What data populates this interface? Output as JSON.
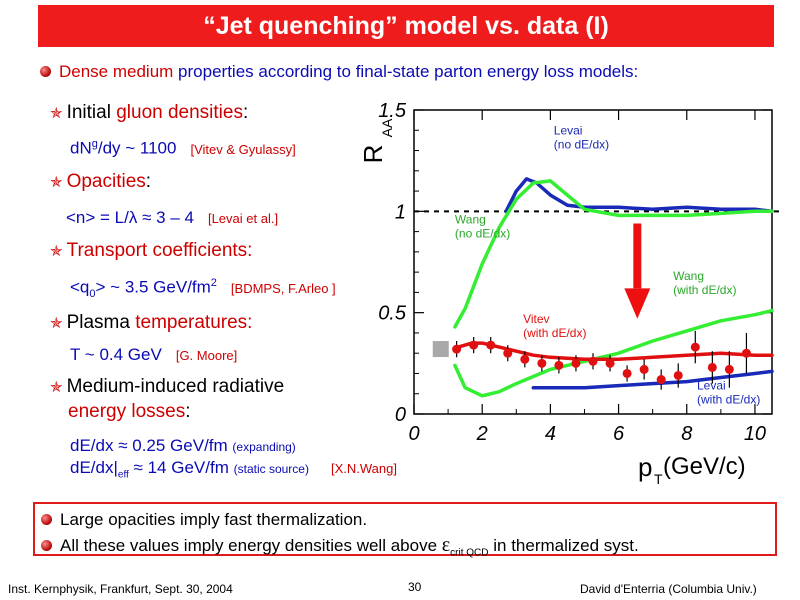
{
  "title": "“Jet quenching” model vs. data (I)",
  "intro": {
    "highlight": "Dense medium",
    "rest": " properties according to final-state parton energy loss models:"
  },
  "items": [
    {
      "pre": "Initial ",
      "hl": "gluon densities",
      "post": ":"
    },
    {
      "pre": "",
      "hl": "Opacities",
      "post": ":"
    },
    {
      "pre": "",
      "hl": "Transport coefficients:",
      "post": ""
    },
    {
      "pre": "Plasma ",
      "hl": "temperatures:",
      "post": ""
    },
    {
      "pre": "Medium-induced radiative",
      "hl": "",
      "post": ""
    }
  ],
  "item5_line2": {
    "hl": "energy losses",
    "post": ":"
  },
  "values": {
    "v1": {
      "a": "dN",
      "sup": "g",
      "b": "/dy ~ 1100",
      "ref": "[Vitev & Gyulassy]"
    },
    "v2": {
      "a": "<n> = L/λ  ≈ 3 – 4",
      "ref": "[Levai et al.]"
    },
    "v3": {
      "a": "<q",
      "sub": "0",
      "b": "> ~ 3.5 GeV/fm",
      "sup": "2",
      "ref": "[BDMPS, F.Arleo ]"
    },
    "v4": {
      "a": "T ~ 0.4 GeV",
      "ref": "[G. Moore]"
    },
    "v5a": {
      "a": "dE/dx ≈ 0.25 GeV/fm",
      "small": "(expanding)"
    },
    "v5b": {
      "a": "dE/dx|",
      "sub": "eff",
      "b": " ≈ 14 GeV/fm",
      "small": "(static source)",
      "ref": "[X.N.Wang]"
    }
  },
  "bottom": {
    "line1": "Large opacities imply fast thermalization.",
    "line2a": "All these values imply energy densities well above ",
    "eps": "ε",
    "sub": "crit QCD",
    "line2b": " in thermalized syst."
  },
  "footer": {
    "left": "Inst. Kernphysik, Frankfurt, Sept. 30, 2004",
    "page": "30",
    "right": "David d'Enterria (Columbia Univ.)"
  },
  "colors": {
    "accent": "#ee1c1c",
    "text_red": "#cc0000",
    "text_blue": "#0a0ab4",
    "curve_blue": "#1a2ab8",
    "curve_green": "#33ee33",
    "curve_red": "#e01010",
    "data_red": "#e01010",
    "arrow": "#ee1010"
  },
  "chart_data": {
    "type": "line",
    "xlabel": "p",
    "xlabel_sub": "T",
    "xlabel_unit": " (GeV/c)",
    "ylabel": "R",
    "ylabel_sub": "AA",
    "xlim": [
      0,
      10.5
    ],
    "ylim": [
      0,
      1.5
    ],
    "xticks": [
      0,
      2,
      4,
      6,
      8,
      10
    ],
    "yticks": [
      0,
      0.5,
      1,
      1.5
    ],
    "yticklabels": [
      "0",
      "0.5",
      "1",
      "1.5"
    ],
    "reference_line_y": 1,
    "series": [
      {
        "name": "Levai (no dE/dx)",
        "color": "#1a2ab8",
        "x": [
          2.7,
          3.0,
          3.3,
          3.6,
          4.0,
          4.5,
          5.0,
          6.0,
          7.0,
          8.0,
          9.0,
          10.0,
          10.5
        ],
        "y": [
          1.0,
          1.1,
          1.16,
          1.14,
          1.08,
          1.03,
          1.02,
          1.02,
          1.01,
          1.02,
          1.01,
          1.01,
          1.0
        ]
      },
      {
        "name": "Wang (no dE/dx)",
        "color": "#33ee33",
        "x": [
          1.2,
          1.5,
          2.0,
          2.5,
          3.0,
          3.5,
          4.0,
          4.5,
          5.0,
          6.0,
          7.0,
          8.0,
          9.0,
          10.0,
          10.5
        ],
        "y": [
          0.43,
          0.52,
          0.74,
          0.92,
          1.06,
          1.14,
          1.15,
          1.08,
          1.01,
          0.98,
          0.98,
          0.98,
          0.99,
          1.0,
          1.0
        ]
      },
      {
        "name": "Wang (with dE/dx)",
        "color": "#33ee33",
        "x": [
          1.2,
          1.5,
          2.0,
          2.5,
          3.0,
          4.0,
          5.0,
          6.0,
          7.0,
          8.0,
          9.0,
          10.0,
          10.5
        ],
        "y": [
          0.24,
          0.13,
          0.09,
          0.11,
          0.15,
          0.22,
          0.26,
          0.3,
          0.36,
          0.41,
          0.46,
          0.49,
          0.51
        ]
      },
      {
        "name": "Vitev (with dE/dx)",
        "color": "#e01010",
        "x": [
          1.3,
          1.7,
          2.0,
          2.5,
          3.0,
          3.5,
          4.0,
          5.0,
          6.0,
          7.0,
          8.0,
          9.0,
          10.0,
          10.5
        ],
        "y": [
          0.33,
          0.35,
          0.35,
          0.33,
          0.31,
          0.29,
          0.28,
          0.27,
          0.27,
          0.28,
          0.29,
          0.3,
          0.29,
          0.29
        ]
      },
      {
        "name": "Levai (with dE/dx)",
        "color": "#1a2ab8",
        "x": [
          3.5,
          4.0,
          5.0,
          6.0,
          7.0,
          8.0,
          9.0,
          10.0,
          10.5
        ],
        "y": [
          0.13,
          0.13,
          0.13,
          0.14,
          0.15,
          0.16,
          0.18,
          0.2,
          0.21
        ]
      },
      {
        "name": "data",
        "color": "#e01010",
        "x": [
          1.25,
          1.75,
          2.25,
          2.75,
          3.25,
          3.75,
          4.25,
          4.75,
          5.25,
          5.75,
          6.25,
          6.75,
          7.25,
          7.75,
          8.25,
          8.75,
          9.25,
          9.75
        ],
        "y": [
          0.32,
          0.34,
          0.34,
          0.3,
          0.27,
          0.25,
          0.24,
          0.25,
          0.26,
          0.25,
          0.2,
          0.22,
          0.17,
          0.19,
          0.33,
          0.23,
          0.22,
          0.3
        ],
        "err": [
          0.04,
          0.04,
          0.04,
          0.04,
          0.04,
          0.04,
          0.04,
          0.04,
          0.04,
          0.04,
          0.04,
          0.05,
          0.05,
          0.06,
          0.08,
          0.08,
          0.09,
          0.1
        ]
      }
    ],
    "labels": [
      {
        "lines": [
          "Levai",
          "(no dE/dx)"
        ],
        "color": "#1a2ab8",
        "x": 4.1,
        "y": 1.38
      },
      {
        "lines": [
          "Wang",
          "(no dE/dx)"
        ],
        "color": "#2aa82a",
        "x": 1.2,
        "y": 0.94
      },
      {
        "lines": [
          "Wang",
          "(with dE/dx)"
        ],
        "color": "#2aa82a",
        "x": 7.6,
        "y": 0.66
      },
      {
        "lines": [
          "Vitev",
          "(with dE/dx)"
        ],
        "color": "#e01010",
        "x": 3.2,
        "y": 0.45
      },
      {
        "lines": [
          "Levai",
          "(with dE/dx)"
        ],
        "color": "#1a2ab8",
        "x": 8.3,
        "y": 0.12
      }
    ]
  }
}
